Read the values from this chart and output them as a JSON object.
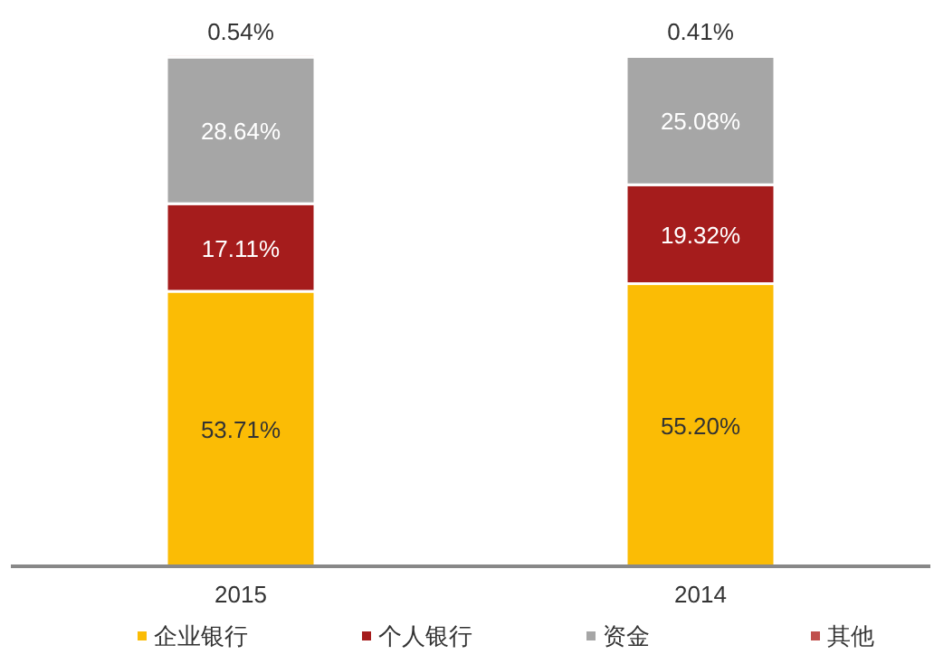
{
  "chart_data": {
    "type": "bar",
    "stacked": true,
    "categories": [
      "2015",
      "2014"
    ],
    "ylim": [
      0,
      100
    ],
    "legend": "bottom",
    "tick_labels": "x",
    "series": [
      {
        "name": "企业银行",
        "color": "#fbbc05",
        "values": [
          53.71,
          55.2
        ],
        "value_labels": [
          "53.71%",
          "55.20%"
        ]
      },
      {
        "name": "个人银行",
        "color": "#a51c1c",
        "values": [
          17.11,
          19.32
        ],
        "value_labels": [
          "17.11%",
          "19.32%"
        ]
      },
      {
        "name": "资金",
        "color": "#a6a6a6",
        "values": [
          28.64,
          25.08
        ],
        "value_labels": [
          "28.64%",
          "25.08%"
        ]
      },
      {
        "name": "其他",
        "color": "#c0504d",
        "values": [
          0.54,
          0.41
        ],
        "value_labels": [
          "0.54%",
          "0.41%"
        ]
      }
    ]
  }
}
